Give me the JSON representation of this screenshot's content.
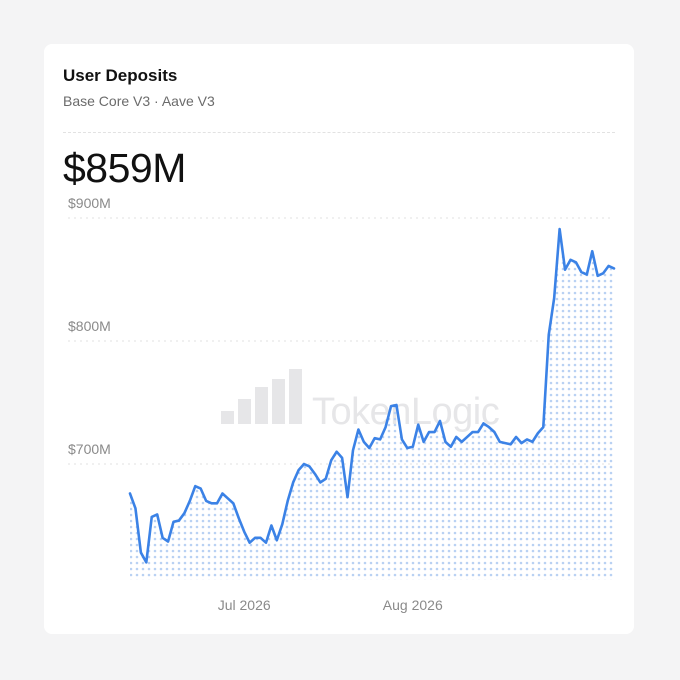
{
  "card": {
    "title": "User Deposits",
    "subtitle": "Base Core V3 · Aave V3",
    "headline_value": "$859M"
  },
  "watermark": {
    "text": "TokenLogic"
  },
  "colors": {
    "line": "#3b82e6",
    "dots": "#b9d1f3",
    "grid": "#e0e0e0",
    "text_muted": "#8a8a8a"
  },
  "chart_data": {
    "type": "area",
    "title": "",
    "xlabel": "",
    "ylabel": "",
    "ylim": [
      610,
      915
    ],
    "y_ticks": [
      {
        "value": 700,
        "label": "$700M"
      },
      {
        "value": 800,
        "label": "$800M"
      },
      {
        "value": 900,
        "label": "$900M"
      }
    ],
    "x_ticks": [
      {
        "x": 21,
        "label": "Jul 2026"
      },
      {
        "x": 52,
        "label": "Aug 2026"
      }
    ],
    "grid": true,
    "series": [
      {
        "values": [
          676,
          664,
          628,
          620,
          657,
          659,
          640,
          637,
          653,
          654,
          660,
          670,
          682,
          680,
          670,
          668,
          668,
          676,
          672,
          668,
          656,
          645,
          636,
          640,
          640,
          636,
          650,
          638,
          651,
          670,
          685,
          695,
          700,
          698,
          692,
          685,
          688,
          703,
          710,
          705,
          673,
          711,
          728,
          718,
          713,
          721,
          720,
          730,
          747,
          748,
          720,
          713,
          714,
          732,
          718,
          726,
          726,
          735,
          718,
          714,
          722,
          718,
          722,
          726,
          726,
          733,
          730,
          726,
          718,
          717,
          716,
          722,
          717,
          720,
          718,
          725,
          730,
          805,
          835,
          891,
          858,
          866,
          864,
          856,
          854,
          873,
          853,
          855,
          861,
          859
        ]
      }
    ]
  }
}
